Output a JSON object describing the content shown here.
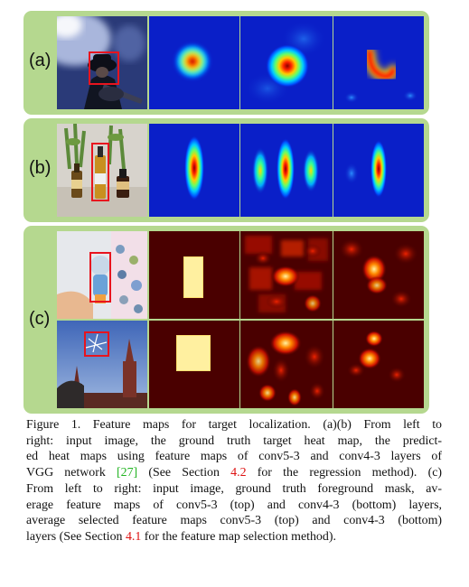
{
  "figure": {
    "panels": [
      {
        "id": "a",
        "label": "(a)"
      },
      {
        "id": "b",
        "label": "(b)"
      },
      {
        "id": "c",
        "label": "(c)"
      }
    ],
    "caption": {
      "line1": "Figure 1. Feature maps for target localization.  (a)(b) From left to",
      "line2": "right: input image, the ground truth target heat map, the predict-",
      "line3": "ed heat maps using feature maps of conv5-3 and conv4-3 layers of",
      "line4_a": "VGG network ",
      "line4_ref": "[27]",
      "line4_b": " (See Section ",
      "line4_sec": "4.2",
      "line4_c": " for the regression method).  (c)",
      "line5": "From left to right: input image, ground truth foreground mask, av-",
      "line6": "erage feature maps of conv5-3 (top) and conv4-3 (bottom) layers,",
      "line7": "average selected feature maps conv5-3 (top) and conv4-3 (bottom)",
      "line8_a": "layers (See Section ",
      "line8_sec": "4.1",
      "line8_b": " for the feature map selection method)."
    },
    "colors": {
      "panel_bg": "#b5d88f",
      "heat_blue": "#0a1fc8",
      "heat_dark_red": "#4a0000",
      "ref_green": "#22b422",
      "section_red": "#dd1111"
    }
  }
}
